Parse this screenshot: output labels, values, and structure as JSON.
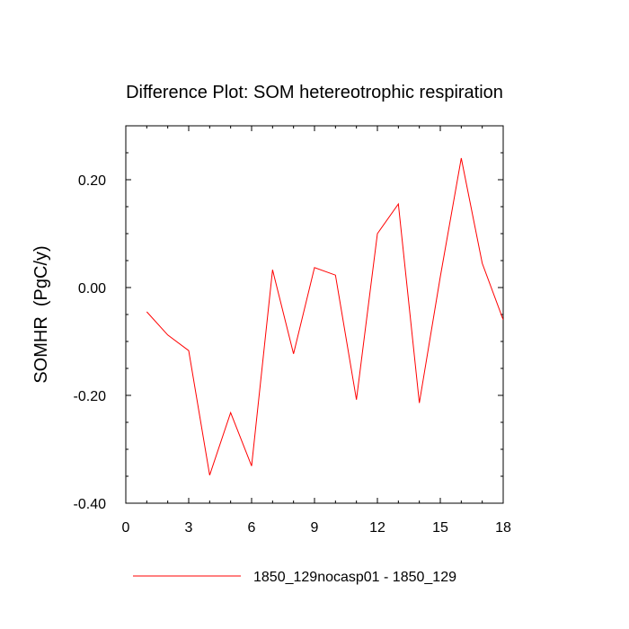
{
  "chart_data": {
    "type": "line",
    "title": "Difference Plot: SOM hetereotrophic respiration",
    "xlabel": "",
    "ylabel": "SOMHR  (PgC/y)",
    "xlim": [
      0,
      18
    ],
    "ylim": [
      -0.4,
      0.3
    ],
    "x_ticks": [
      0,
      3,
      6,
      9,
      12,
      15,
      18
    ],
    "x_tick_labels": [
      "0",
      "3",
      "6",
      "9",
      "12",
      "15",
      "18"
    ],
    "x_minor_step": 1,
    "y_ticks": [
      -0.4,
      -0.2,
      0.0,
      0.2
    ],
    "y_tick_labels": [
      "-0.40",
      "-0.20",
      "0.00",
      "0.20"
    ],
    "y_minor_step": 0.05,
    "grid": false,
    "legend_position": "bottom",
    "series": [
      {
        "name": "1850_129nocasp01 - 1850_129",
        "color": "#ff0000",
        "x": [
          1,
          2,
          3,
          4,
          5,
          6,
          7,
          8,
          9,
          10,
          11,
          12,
          13,
          14,
          15,
          16,
          17,
          18
        ],
        "values": [
          -0.045,
          -0.088,
          -0.117,
          -0.348,
          -0.232,
          -0.331,
          0.033,
          -0.123,
          0.037,
          0.023,
          -0.208,
          0.1,
          0.155,
          -0.214,
          0.02,
          0.24,
          0.045,
          -0.06
        ]
      }
    ]
  }
}
